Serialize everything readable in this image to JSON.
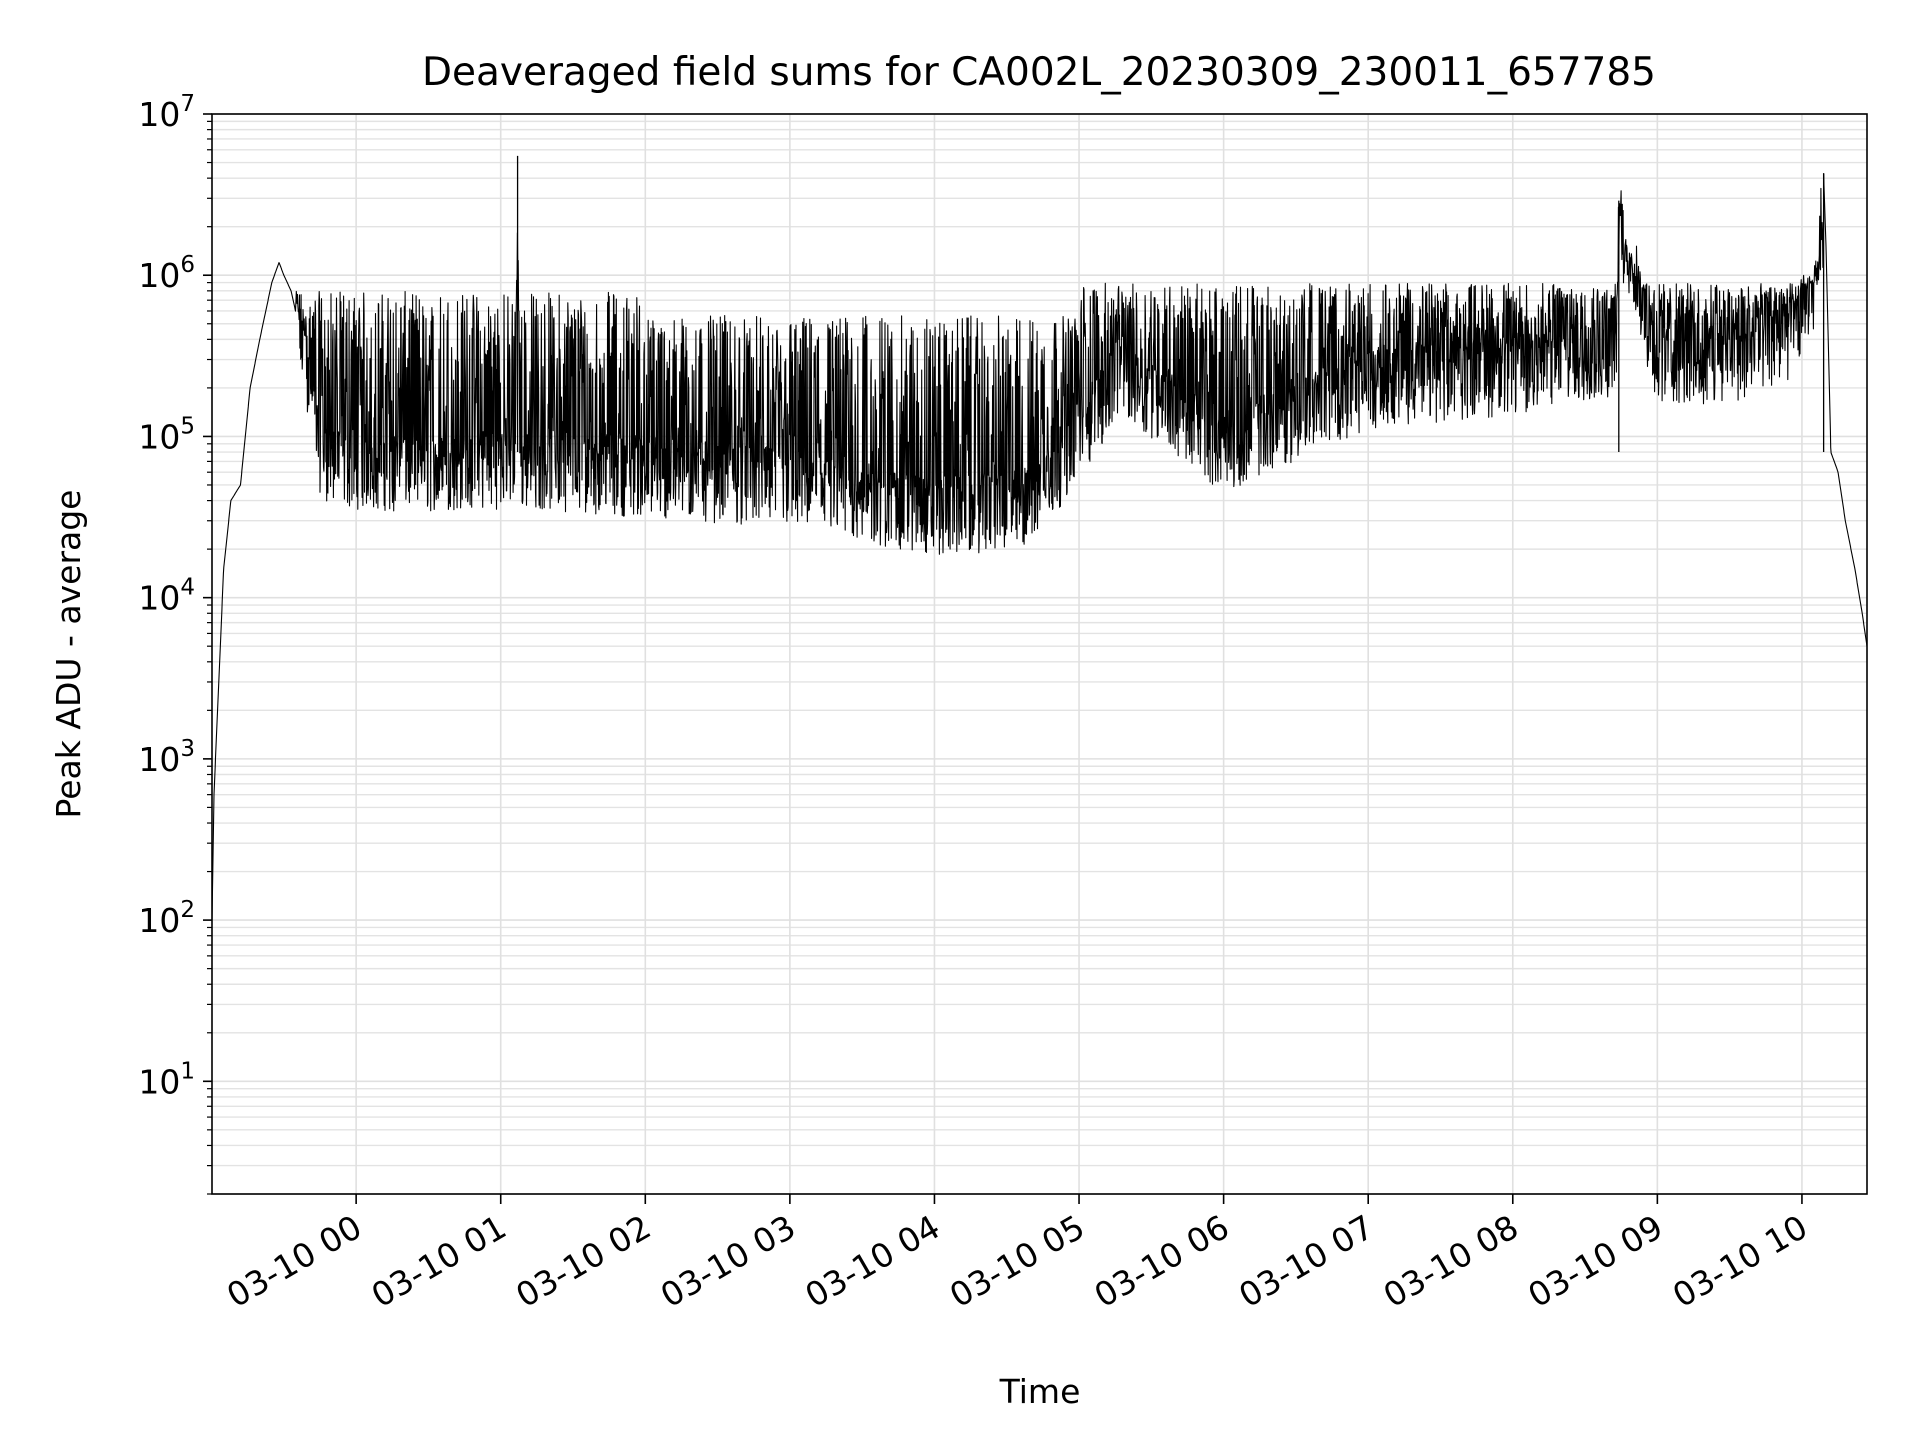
{
  "chart_data": {
    "type": "line",
    "title": "Deaveraged field sums for CA002L_20230309_230011_657785",
    "xlabel": "Time",
    "ylabel": "Peak ADU - average",
    "yscale": "log",
    "ylim": [
      2,
      10000000
    ],
    "xlim": [
      "2023-03-09 23:00:11",
      "2023-03-10 10:27:00"
    ],
    "grid": true,
    "line_color": "#000000",
    "x_ticks": [
      {
        "t": "2023-03-10 00:00",
        "label": "03-10 00"
      },
      {
        "t": "2023-03-10 01:00",
        "label": "03-10 01"
      },
      {
        "t": "2023-03-10 02:00",
        "label": "03-10 02"
      },
      {
        "t": "2023-03-10 03:00",
        "label": "03-10 03"
      },
      {
        "t": "2023-03-10 04:00",
        "label": "03-10 04"
      },
      {
        "t": "2023-03-10 05:00",
        "label": "03-10 05"
      },
      {
        "t": "2023-03-10 06:00",
        "label": "03-10 06"
      },
      {
        "t": "2023-03-10 07:00",
        "label": "03-10 07"
      },
      {
        "t": "2023-03-10 08:00",
        "label": "03-10 08"
      },
      {
        "t": "2023-03-10 09:00",
        "label": "03-10 09"
      },
      {
        "t": "2023-03-10 10:00",
        "label": "03-10 10"
      }
    ],
    "y_ticks": [
      {
        "value": 10,
        "base": "10",
        "exp": "1"
      },
      {
        "value": 100,
        "base": "10",
        "exp": "2"
      },
      {
        "value": 1000,
        "base": "10",
        "exp": "3"
      },
      {
        "value": 10000,
        "base": "10",
        "exp": "4"
      },
      {
        "value": 100000,
        "base": "10",
        "exp": "5"
      },
      {
        "value": 1000000,
        "base": "10",
        "exp": "6"
      },
      {
        "value": 10000000,
        "base": "10",
        "exp": "7"
      }
    ],
    "series": [
      {
        "x": [
          "2023-03-09 23:00:11",
          "2023-03-09 23:01",
          "2023-03-09 23:03",
          "2023-03-09 23:05",
          "2023-03-09 23:08",
          "2023-03-09 23:12",
          "2023-03-09 23:16",
          "2023-03-09 23:20",
          "2023-03-09 23:25",
          "2023-03-09 23:28",
          "2023-03-09 23:30",
          "2023-03-09 23:33",
          "2023-03-09 23:36",
          "2023-03-09 23:40",
          "2023-03-09 23:45",
          "2023-03-09 23:50",
          "2023-03-10 00:30",
          "2023-03-10 01:06",
          "2023-03-10 01:07",
          "2023-03-10 01:08",
          "2023-03-10 02:00",
          "2023-03-10 03:00",
          "2023-03-10 04:00",
          "2023-03-10 04:40",
          "2023-03-10 05:00",
          "2023-03-10 05:18",
          "2023-03-10 06:00",
          "2023-03-10 07:00",
          "2023-03-10 08:00",
          "2023-03-10 08:43",
          "2023-03-10 08:44",
          "2023-03-10 09:00",
          "2023-03-10 09:30",
          "2023-03-10 09:55",
          "2023-03-10 10:05",
          "2023-03-10 10:09",
          "2023-03-10 10:10",
          "2023-03-10 10:12",
          "2023-03-10 10:15",
          "2023-03-10 10:18",
          "2023-03-10 10:22",
          "2023-03-10 10:25",
          "2023-03-10 10:27"
        ],
        "y": [
          100,
          600,
          3000,
          15000,
          40000,
          50000,
          200000,
          400000,
          900000,
          1200000,
          1000000,
          800000,
          500000,
          300000,
          100000,
          80000,
          75000,
          80000,
          5500000,
          80000,
          70000,
          60000,
          40000,
          45000,
          120000,
          300000,
          100000,
          250000,
          300000,
          400000,
          2900000,
          350000,
          350000,
          500000,
          1000000,
          4300000,
          1500000,
          80000,
          60000,
          30000,
          15000,
          8000,
          5000
        ]
      }
    ]
  }
}
